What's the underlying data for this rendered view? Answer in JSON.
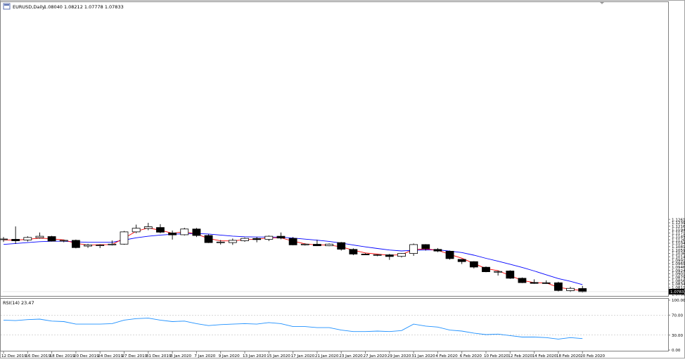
{
  "header": {
    "symbol_label": "EURUSD,Daily",
    "ohlc_label": "1.08040 1.08212 1.07778 1.07833"
  },
  "rsi_panel": {
    "label": "RSI(14) 23.47"
  },
  "colors": {
    "bull_fill": "#ffffff",
    "bear_fill": "#000000",
    "candle_stroke": "#000000",
    "fast_ma": "#ff0000",
    "slow_ma": "#0000ff",
    "rsi_line": "#1e90ff",
    "level_line": "#c0c0c0",
    "price_tag_bg": "#000000",
    "price_tag_text": "#ffffff"
  },
  "chart_data": {
    "type": "candlestick",
    "price_axis": {
      "ylim": [
        1.0755,
        1.27
      ],
      "ticks": [
        "1.12615",
        "1.12390",
        "1.12165",
        "1.11940",
        "1.11715",
        "1.11490",
        "1.11265",
        "1.11040",
        "1.10815",
        "1.10590",
        "1.10365",
        "1.10140",
        "1.09915",
        "1.09690",
        "1.09465",
        "1.09240",
        "1.09015",
        "1.08790",
        "1.08565",
        "1.08340",
        "1.08115",
        "1.07890",
        "1.07665"
      ],
      "current_price": "1.07833"
    },
    "rsi_axis": {
      "ylim": [
        0,
        100
      ],
      "ticks": [
        "100.00",
        "70.00",
        "30.00",
        "0.00"
      ],
      "levels": [
        70,
        30
      ]
    },
    "x_labels": [
      {
        "index": 0,
        "label": "12 Dec 2019"
      },
      {
        "index": 2,
        "label": "16 Dec 2019"
      },
      {
        "index": 4,
        "label": "18 Dec 2019"
      },
      {
        "index": 6,
        "label": "20 Dec 2019"
      },
      {
        "index": 8,
        "label": "24 Dec 2019"
      },
      {
        "index": 10,
        "label": "27 Dec 2019"
      },
      {
        "index": 12,
        "label": "31 Dec 2019"
      },
      {
        "index": 14,
        "label": "3 Jan 2020"
      },
      {
        "index": 16,
        "label": "7 Jan 2020"
      },
      {
        "index": 18,
        "label": "9 Jan 2020"
      },
      {
        "index": 20,
        "label": "13 Jan 2020"
      },
      {
        "index": 22,
        "label": "15 Jan 2020"
      },
      {
        "index": 24,
        "label": "17 Jan 2020"
      },
      {
        "index": 26,
        "label": "21 Jan 2020"
      },
      {
        "index": 28,
        "label": "23 Jan 2020"
      },
      {
        "index": 30,
        "label": "27 Jan 2020"
      },
      {
        "index": 32,
        "label": "29 Jan 2020"
      },
      {
        "index": 34,
        "label": "31 Jan 2020"
      },
      {
        "index": 36,
        "label": "4 Feb 2020"
      },
      {
        "index": 38,
        "label": "6 Feb 2020"
      },
      {
        "index": 40,
        "label": "10 Feb 2020"
      },
      {
        "index": 42,
        "label": "12 Feb 2020"
      },
      {
        "index": 44,
        "label": "14 Feb 2020"
      },
      {
        "index": 46,
        "label": "18 Feb 2020"
      },
      {
        "index": 48,
        "label": "20 Feb 2020"
      }
    ],
    "candles": [
      {
        "o": 1.113,
        "h": 1.1145,
        "l": 1.1112,
        "c": 1.1132
      },
      {
        "o": 1.113,
        "h": 1.1215,
        "l": 1.11,
        "c": 1.112
      },
      {
        "o": 1.1125,
        "h": 1.115,
        "l": 1.1115,
        "c": 1.1142
      },
      {
        "o": 1.114,
        "h": 1.1175,
        "l": 1.1135,
        "c": 1.115
      },
      {
        "o": 1.1148,
        "h": 1.1153,
        "l": 1.1115,
        "c": 1.1118
      },
      {
        "o": 1.1118,
        "h": 1.1127,
        "l": 1.111,
        "c": 1.1123
      },
      {
        "o": 1.1123,
        "h": 1.1128,
        "l": 1.107,
        "c": 1.1075
      },
      {
        "o": 1.1085,
        "h": 1.11,
        "l": 1.1073,
        "c": 1.1093
      },
      {
        "o": 1.109,
        "h": 1.1097,
        "l": 1.1072,
        "c": 1.1092
      },
      {
        "o": 1.1093,
        "h": 1.1122,
        "l": 1.1089,
        "c": 1.1098
      },
      {
        "o": 1.1098,
        "h": 1.1185,
        "l": 1.1094,
        "c": 1.1179
      },
      {
        "o": 1.1179,
        "h": 1.1227,
        "l": 1.117,
        "c": 1.1203
      },
      {
        "o": 1.1202,
        "h": 1.1239,
        "l": 1.119,
        "c": 1.1213
      },
      {
        "o": 1.1208,
        "h": 1.123,
        "l": 1.117,
        "c": 1.1177
      },
      {
        "o": 1.1172,
        "h": 1.1188,
        "l": 1.1128,
        "c": 1.1159
      },
      {
        "o": 1.116,
        "h": 1.1206,
        "l": 1.1155,
        "c": 1.1198
      },
      {
        "o": 1.1198,
        "h": 1.1205,
        "l": 1.1145,
        "c": 1.1155
      },
      {
        "o": 1.1155,
        "h": 1.1163,
        "l": 1.1105,
        "c": 1.1108
      },
      {
        "o": 1.1108,
        "h": 1.1125,
        "l": 1.1095,
        "c": 1.1112
      },
      {
        "o": 1.1108,
        "h": 1.1135,
        "l": 1.1093,
        "c": 1.1123
      },
      {
        "o": 1.112,
        "h": 1.1142,
        "l": 1.1113,
        "c": 1.1136
      },
      {
        "o": 1.1135,
        "h": 1.1145,
        "l": 1.111,
        "c": 1.1128
      },
      {
        "o": 1.113,
        "h": 1.1155,
        "l": 1.1118,
        "c": 1.115
      },
      {
        "o": 1.115,
        "h": 1.1175,
        "l": 1.113,
        "c": 1.1138
      },
      {
        "o": 1.1136,
        "h": 1.1145,
        "l": 1.109,
        "c": 1.1093
      },
      {
        "o": 1.1093,
        "h": 1.1103,
        "l": 1.1089,
        "c": 1.1098
      },
      {
        "o": 1.1097,
        "h": 1.1126,
        "l": 1.1085,
        "c": 1.1087
      },
      {
        "o": 1.1087,
        "h": 1.1103,
        "l": 1.1084,
        "c": 1.1098
      },
      {
        "o": 1.1108,
        "h": 1.1112,
        "l": 1.1055,
        "c": 1.1064
      },
      {
        "o": 1.1063,
        "h": 1.107,
        "l": 1.1025,
        "c": 1.1032
      },
      {
        "o": 1.1032,
        "h": 1.1037,
        "l": 1.1025,
        "c": 1.1027
      },
      {
        "o": 1.1025,
        "h": 1.1031,
        "l": 1.1018,
        "c": 1.1028
      },
      {
        "o": 1.1027,
        "h": 1.1033,
        "l": 1.0994,
        "c": 1.1016
      },
      {
        "o": 1.1017,
        "h": 1.1038,
        "l": 1.101,
        "c": 1.1036
      },
      {
        "o": 1.1036,
        "h": 1.1102,
        "l": 1.102,
        "c": 1.1095
      },
      {
        "o": 1.1095,
        "h": 1.1098,
        "l": 1.1055,
        "c": 1.1068
      },
      {
        "o": 1.1063,
        "h": 1.1072,
        "l": 1.1045,
        "c": 1.1052
      },
      {
        "o": 1.1051,
        "h": 1.1055,
        "l": 1.0995,
        "c": 1.1002
      },
      {
        "o": 1.0997,
        "h": 1.1,
        "l": 1.0966,
        "c": 1.0982
      },
      {
        "o": 1.0982,
        "h": 1.0985,
        "l": 1.0937,
        "c": 1.0946
      },
      {
        "o": 1.0945,
        "h": 1.095,
        "l": 1.0912,
        "c": 1.0915
      },
      {
        "o": 1.0912,
        "h": 1.0923,
        "l": 1.089,
        "c": 1.0917
      },
      {
        "o": 1.092,
        "h": 1.0925,
        "l": 1.0868,
        "c": 1.0872
      },
      {
        "o": 1.0872,
        "h": 1.0877,
        "l": 1.084,
        "c": 1.0843
      },
      {
        "o": 1.0844,
        "h": 1.0865,
        "l": 1.0835,
        "c": 1.0838
      },
      {
        "o": 1.0842,
        "h": 1.0858,
        "l": 1.0835,
        "c": 1.084
      },
      {
        "o": 1.0842,
        "h": 1.0849,
        "l": 1.0785,
        "c": 1.0791
      },
      {
        "o": 1.079,
        "h": 1.0815,
        "l": 1.0781,
        "c": 1.0805
      },
      {
        "o": 1.0804,
        "h": 1.0821,
        "l": 1.0778,
        "c": 1.0783
      }
    ],
    "fast_ma": [
      1.1126,
      1.1125,
      1.1129,
      1.1138,
      1.1133,
      1.1126,
      1.1103,
      1.1092,
      1.1094,
      1.1095,
      1.1137,
      1.1183,
      1.1205,
      1.119,
      1.117,
      1.118,
      1.1165,
      1.1135,
      1.112,
      1.1119,
      1.1128,
      1.113,
      1.114,
      1.114,
      1.1118,
      1.11,
      1.1092,
      1.1092,
      1.108,
      1.1058,
      1.104,
      1.1032,
      1.1024,
      1.1028,
      1.1062,
      1.1066,
      1.1058,
      1.103,
      1.1005,
      1.097,
      1.0936,
      1.0922,
      1.089,
      1.0858,
      1.0843,
      1.0841,
      1.0812,
      1.08,
      1.079
    ],
    "slow_ma": [
      1.1096,
      1.1102,
      1.1108,
      1.1114,
      1.1117,
      1.1117,
      1.1113,
      1.111,
      1.111,
      1.111,
      1.1125,
      1.114,
      1.115,
      1.1158,
      1.1163,
      1.1167,
      1.1168,
      1.1165,
      1.1158,
      1.1151,
      1.1147,
      1.1145,
      1.1145,
      1.1144,
      1.1138,
      1.1131,
      1.1124,
      1.1116,
      1.1105,
      1.1092,
      1.108,
      1.1069,
      1.1059,
      1.1053,
      1.1057,
      1.106,
      1.106,
      1.1052,
      1.1042,
      1.1025,
      1.1004,
      1.0985,
      1.0965,
      1.0944,
      1.092,
      1.0895,
      1.087,
      1.0852,
      1.083
    ],
    "rsi": [
      60,
      59,
      61,
      62,
      58,
      57,
      52,
      52,
      52,
      53,
      60,
      63,
      64,
      60,
      57,
      58,
      53,
      49,
      51,
      52,
      53,
      52,
      55,
      53,
      47,
      47,
      45,
      45,
      40,
      37,
      37,
      38,
      37,
      39,
      52,
      48,
      46,
      40,
      38,
      34,
      31,
      32,
      29,
      26,
      26,
      25,
      22,
      25,
      23
    ]
  }
}
